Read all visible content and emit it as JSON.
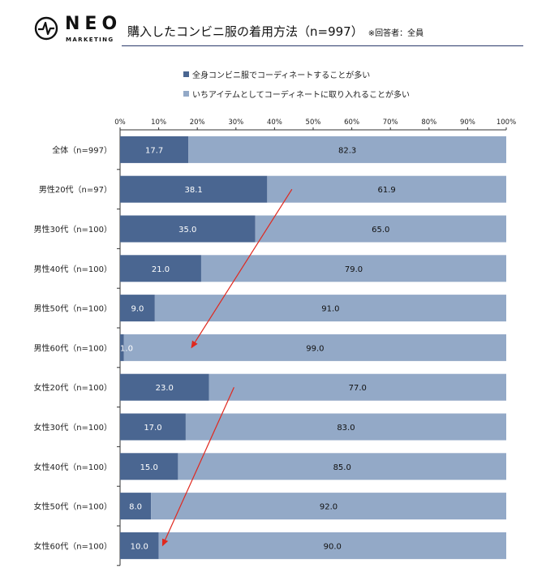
{
  "brand": {
    "name": "NEO",
    "sub": "MARKETING"
  },
  "title": "購入したコンビニ服の着用方法（n=997）",
  "title_note": "※回答者：全員",
  "colors": {
    "dark": "#4a6691",
    "light": "#93a9c7",
    "arrow": "#e0281e",
    "axis": "#333333"
  },
  "chart_data": {
    "type": "bar",
    "orientation": "horizontal",
    "stacked": true,
    "percent": true,
    "xlim": [
      0,
      100
    ],
    "x_ticks": [
      "0%",
      "10%",
      "20%",
      "30%",
      "40%",
      "50%",
      "60%",
      "70%",
      "80%",
      "90%",
      "100%"
    ],
    "categories": [
      "全体（n=997）",
      "男性20代（n=97）",
      "男性30代（n=100）",
      "男性40代（n=100）",
      "男性50代（n=100）",
      "男性60代（n=100）",
      "女性20代（n=100）",
      "女性30代（n=100）",
      "女性40代（n=100）",
      "女性50代（n=100）",
      "女性60代（n=100）"
    ],
    "series": [
      {
        "name": "全身コンビニ服でコーディネートすることが多い",
        "color": "#4a6691",
        "values": [
          17.7,
          38.1,
          35.0,
          21.0,
          9.0,
          1.0,
          23.0,
          17.0,
          15.0,
          8.0,
          10.0
        ]
      },
      {
        "name": "いちアイテムとしてコーディネートに取り入れることが多い",
        "color": "#93a9c7",
        "values": [
          82.3,
          61.9,
          65.0,
          79.0,
          91.0,
          99.0,
          77.0,
          83.0,
          85.0,
          92.0,
          90.0
        ]
      }
    ],
    "labels": [
      [
        "17.7",
        "38.1",
        "35.0",
        "21.0",
        "9.0",
        "1.0",
        "23.0",
        "17.0",
        "15.0",
        "8.0",
        "10.0"
      ],
      [
        "82.3",
        "61.9",
        "65.0",
        "79.0",
        "91.0",
        "99.0",
        "77.0",
        "83.0",
        "85.0",
        "92.0",
        "90.0"
      ]
    ],
    "annotations": [
      {
        "type": "arrow",
        "from": {
          "category": "男性20代（n=97）",
          "value": 44.5
        },
        "to": {
          "category": "男性60代（n=100）",
          "value": 18.5
        }
      },
      {
        "type": "arrow",
        "from": {
          "category": "女性20代（n=100）",
          "value": 29.5
        },
        "to": {
          "category": "女性60代（n=100）",
          "value": 11.0
        }
      }
    ]
  }
}
